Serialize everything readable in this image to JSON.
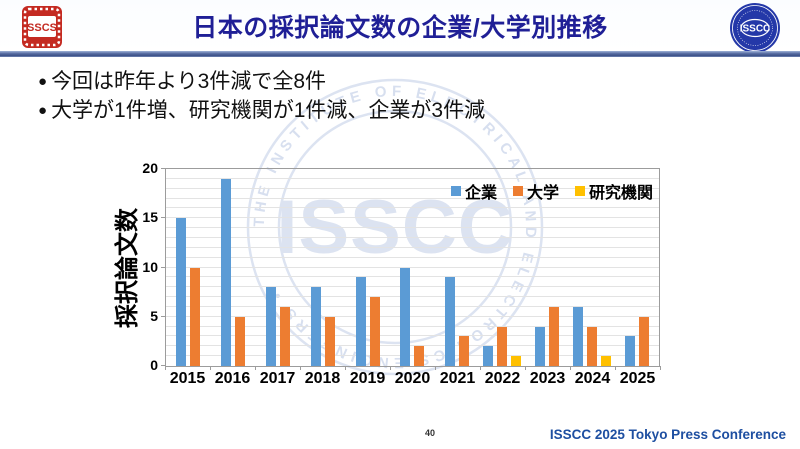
{
  "header": {
    "title": "日本の採択論文数の企業/大学別推移",
    "sscs_logo_text": "SSCS",
    "isscc_logo_text": "ISSCC"
  },
  "bullets": [
    "今回は昨年より3件減で全8件",
    "大学が1件増、研究機関が1件減、企業が3件減"
  ],
  "watermark": {
    "ring_text": "THE INSTITUTE OF ELECTRICAL AND ELECTRONICS ENGINEERS •",
    "center_text": "ISSCC",
    "color": "#dce3f1"
  },
  "chart_data": {
    "type": "bar",
    "title": "",
    "xlabel": "",
    "ylabel": "採択論文数",
    "categories": [
      "2015",
      "2016",
      "2017",
      "2018",
      "2019",
      "2020",
      "2021",
      "2022",
      "2023",
      "2024",
      "2025"
    ],
    "series": [
      {
        "name": "企業",
        "color": "#5B9BD5",
        "values": [
          15,
          19,
          8,
          8,
          9,
          10,
          9,
          2,
          4,
          6,
          3
        ]
      },
      {
        "name": "大学",
        "color": "#ED7D31",
        "values": [
          10,
          5,
          6,
          5,
          7,
          2,
          3,
          4,
          6,
          4,
          5
        ]
      },
      {
        "name": "研究機関",
        "color": "#FFC000",
        "values": [
          0,
          0,
          0,
          0,
          0,
          0,
          0,
          1,
          0,
          1,
          0
        ]
      }
    ],
    "ylim": [
      0,
      20
    ],
    "yticks": [
      0,
      5,
      10,
      15,
      20
    ],
    "grid": "horizontal minor gridlines every 1 unit",
    "legend_position": "top-right inside plot"
  },
  "footer": {
    "page_number": "40",
    "conference": "ISSCC 2025 Tokyo Press Conference"
  },
  "colors": {
    "title": "#1f1f96",
    "footer_text": "#1e4fa1",
    "sscs_red": "#c42a21",
    "isscc_blue": "#2438a8"
  }
}
